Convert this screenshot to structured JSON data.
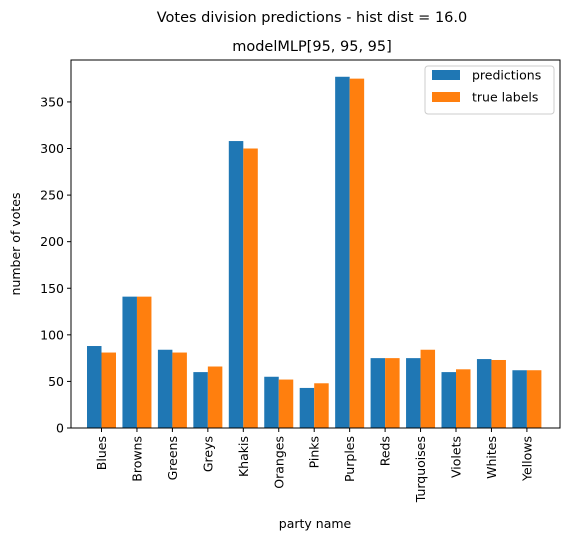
{
  "chart_data": {
    "type": "bar",
    "suptitle": "Votes division predictions - hist dist = 16.0",
    "title": "modelMLP[95, 95, 95]",
    "xlabel": "party name",
    "ylabel": "number of votes",
    "ylim": [
      0,
      395
    ],
    "yticks": [
      0,
      50,
      100,
      150,
      200,
      250,
      300,
      350
    ],
    "grid": false,
    "legend_position": "top-right",
    "categories": [
      "Blues",
      "Browns",
      "Greens",
      "Greys",
      "Khakis",
      "Oranges",
      "Pinks",
      "Purples",
      "Reds",
      "Turquoises",
      "Violets",
      "Whites",
      "Yellows"
    ],
    "series": [
      {
        "name": "predictions",
        "color": "#1f77b4",
        "values": [
          88,
          141,
          84,
          60,
          308,
          55,
          43,
          377,
          75,
          75,
          60,
          74,
          62
        ]
      },
      {
        "name": "true labels",
        "color": "#ff7f0e",
        "values": [
          81,
          141,
          81,
          66,
          300,
          52,
          48,
          375,
          75,
          84,
          63,
          73,
          62
        ]
      }
    ]
  }
}
